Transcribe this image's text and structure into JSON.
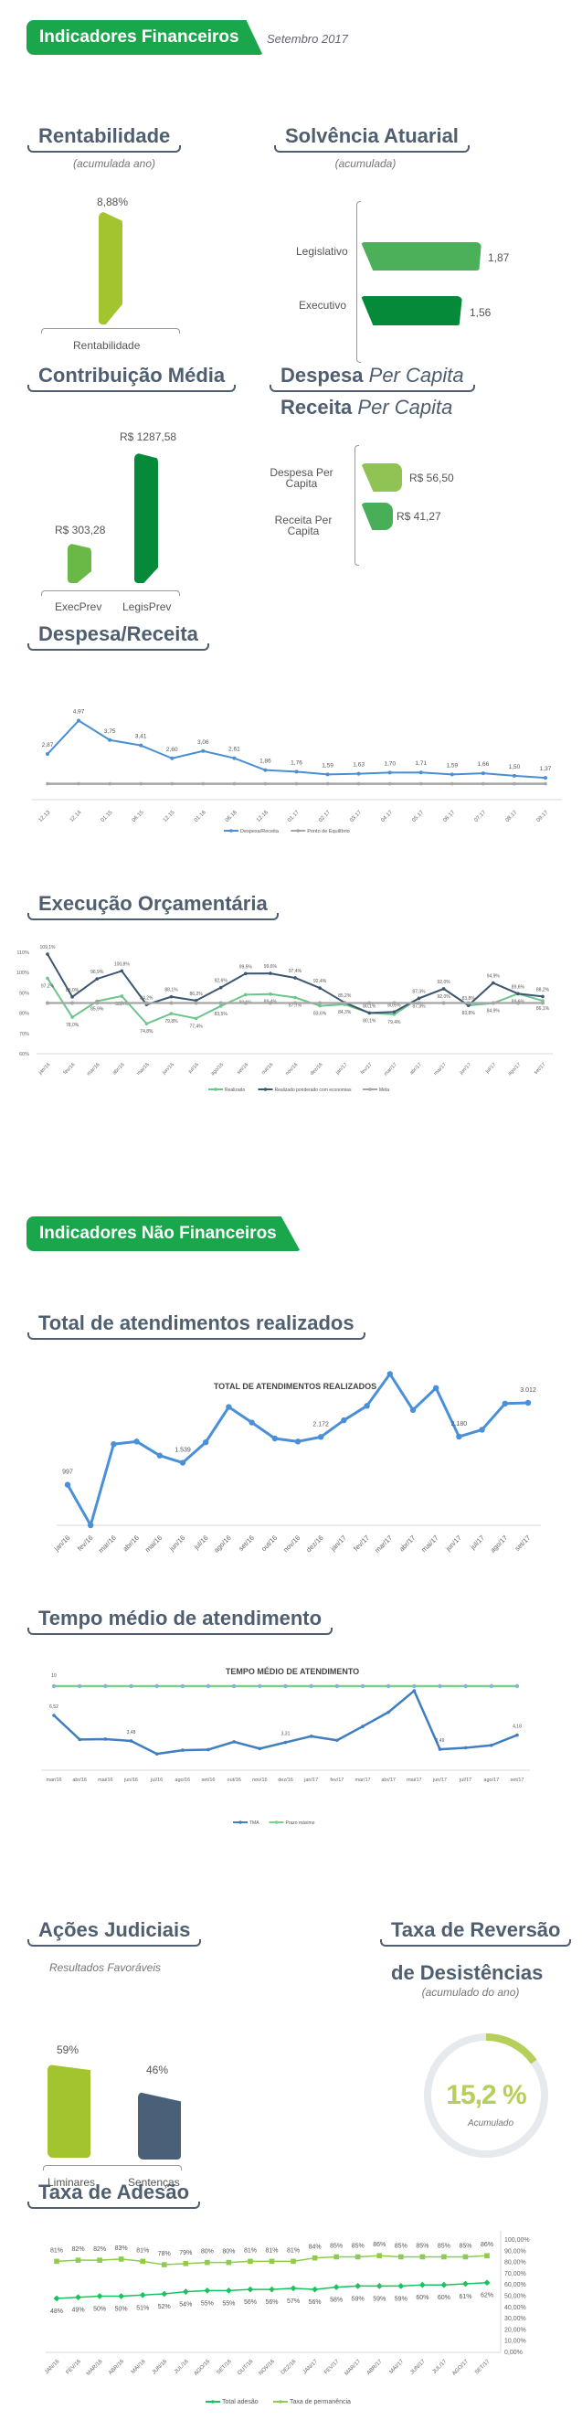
{
  "header": {
    "banner": "Indicadores Financeiros",
    "date": "Setembro 2017"
  },
  "colors": {
    "brand_green": "#1aa64a",
    "title_slate": "#4f5f6f",
    "lime": "#a2c42e",
    "legislativo": "#4caf5a",
    "executivo": "#058a3a",
    "navy": "#3d5672",
    "blue": "#4a8fd4"
  },
  "rentabilidade": {
    "title": "Rentabilidade",
    "subtitle": "(acumulada ano)",
    "value": 8.88,
    "value_label": "8,88%",
    "category": "Rentabilidade"
  },
  "solvencia": {
    "title": "Solvência Atuarial",
    "subtitle": "(acumulada)",
    "bars": [
      {
        "label": "Legislativo",
        "value": 1.87,
        "value_label": "1,87"
      },
      {
        "label": "Executivo",
        "value": 1.56,
        "value_label": "1,56"
      }
    ]
  },
  "contribuicao": {
    "title": "Contribuição Média",
    "bars": [
      {
        "label": "ExecPrev",
        "value": 303.28,
        "value_label": "R$ 303,28"
      },
      {
        "label": "LegisPrev",
        "value": 1287.58,
        "value_label": "R$ 1287,58"
      }
    ]
  },
  "per_capita": {
    "title1_bold": "Despesa",
    "title1_italic": "Per Capita",
    "title2_bold": "Receita",
    "title2_italic": "Per Capita",
    "bars": [
      {
        "label": "Despesa Per Capita",
        "value": 56.5,
        "value_label": "R$ 56,50"
      },
      {
        "label": "Receita Per Capita",
        "value": 41.27,
        "value_label": "R$ 41,27"
      }
    ]
  },
  "sections": {
    "despesa_receita": "Despesa/Receita",
    "execucao": "Execução Orçamentária",
    "nao_financeiros_banner": "Indicadores Não Financeiros",
    "atendimentos": "Total de atendimentos realizados",
    "tempo": "Tempo médio de atendimento",
    "acoes": "Ações Judiciais",
    "acoes_sub": "Resultados Favoráveis",
    "reversao_line1": "Taxa de Reversão",
    "reversao_line2": "de Desistências",
    "reversao_sub": "(acumulado do ano)",
    "adesao": "Taxa de Adesão"
  },
  "acoes": {
    "bars": [
      {
        "label": "Liminares",
        "value": 59,
        "value_label": "59%"
      },
      {
        "label": "Sentenças",
        "value": 46,
        "value_label": "46%"
      }
    ]
  },
  "reversao": {
    "value": 15.2,
    "value_label": "15,2 %",
    "caption": "Acumulado"
  },
  "chart_data": [
    {
      "id": "despesa_receita",
      "type": "line",
      "title": "",
      "categories": [
        "12.13",
        "12.14",
        "01.15",
        "06.15",
        "12.15",
        "01.16",
        "06.16",
        "12.16",
        "01.17",
        "02.17",
        "03.17",
        "04.17",
        "05.17",
        "06.17",
        "07.17",
        "08.17",
        "09.17"
      ],
      "ylim": [
        0,
        5.5
      ],
      "grid": false,
      "legend": "bottom",
      "series": [
        {
          "name": "Despesa/Receita",
          "color": "#4a8fd4",
          "values": [
            2.87,
            4.97,
            3.75,
            3.41,
            2.6,
            3.06,
            2.61,
            1.86,
            1.76,
            1.59,
            1.63,
            1.7,
            1.71,
            1.59,
            1.66,
            1.5,
            1.37
          ],
          "labels": [
            "2,87",
            "4,97",
            "3,75",
            "3,41",
            "2,60",
            "3,06",
            "2,61",
            "1,86",
            "1,76",
            "1,59",
            "1,63",
            "1,70",
            "1,71",
            "1,59",
            "1,66",
            "1,50",
            "1,37"
          ]
        },
        {
          "name": "Ponto de Equilíbrio",
          "color": "#a6a6a6",
          "values": [
            1,
            1,
            1,
            1,
            1,
            1,
            1,
            1,
            1,
            1,
            1,
            1,
            1,
            1,
            1,
            1,
            1
          ]
        }
      ]
    },
    {
      "id": "execucao",
      "type": "line",
      "title": "",
      "categories": [
        "jan/16",
        "fev/16",
        "mar/16",
        "abr/16",
        "mai/16",
        "jun/16",
        "jul/16",
        "ago/16",
        "set/16",
        "out/16",
        "nov/16",
        "dez/16",
        "jan/17",
        "fev/17",
        "mar/17",
        "abr/17",
        "mai/17",
        "jun/17",
        "jul/17",
        "ago/17",
        "set/17"
      ],
      "ylim": [
        60,
        110
      ],
      "yticks": [
        "60%",
        "70%",
        "80%",
        "90%",
        "100%",
        "110%"
      ],
      "grid": false,
      "legend": "bottom",
      "series": [
        {
          "name": "Realizado",
          "color": "#6cc58a",
          "values": [
            97.2,
            78.0,
            85.9,
            88.4,
            74.8,
            79.8,
            77.4,
            83.5,
            89.1,
            89.4,
            87.7,
            83.6,
            84.3,
            80.1,
            79.4,
            87.3,
            92.0,
            83.8,
            84.9,
            89.6,
            86.1
          ],
          "labels": [
            "97,2%",
            "78,0%",
            "85,9%",
            "88,4%",
            "74,8%",
            "79,8%",
            "77,4%",
            "83,5%",
            "89,1%",
            "89,4%",
            "87,7%",
            "83,6%",
            "84,3%",
            "80,1%",
            "79,4%",
            "87,3%",
            "92,0%",
            "83,8%",
            "84,9%",
            "89,6%",
            "86,1%"
          ]
        },
        {
          "name": "Realizado ponderado com economias",
          "color": "#3d5672",
          "values": [
            109.1,
            88.0,
            96.9,
            100.8,
            84.2,
            88.1,
            86.2,
            92.6,
            99.5,
            99.6,
            97.4,
            92.4,
            85.2,
            80.1,
            80.6,
            87.3,
            92.0,
            83.8,
            94.9,
            89.6,
            88.2
          ],
          "labels": [
            "109,1%",
            "88,0%",
            "96,9%",
            "100,8%",
            "84,2%",
            "88,1%",
            "86,2%",
            "92,6%",
            "99,5%",
            "99,6%",
            "97,4%",
            "92,4%",
            "85,2%",
            "80,1%",
            "80,6%",
            "87,3%",
            "92,0%",
            "83,8%",
            "94,9%",
            "89,6%",
            "88,2%"
          ]
        },
        {
          "name": "Meta",
          "color": "#a6a6a6",
          "values": [
            85,
            85,
            85,
            85,
            85,
            85,
            85,
            85,
            85,
            85,
            85,
            85,
            85,
            85,
            85,
            85,
            85,
            85,
            85,
            85,
            85
          ]
        }
      ]
    },
    {
      "id": "atendimentos",
      "type": "line",
      "title": "TOTAL DE ATENDIMENTOS REALIZADOS",
      "categories": [
        "jan/16",
        "fev/16",
        "mar/16",
        "abr/16",
        "mai/16",
        "jun/16",
        "jul/16",
        "ago/16",
        "set/16",
        "out/16",
        "nov/16",
        "dez/16",
        "jan/17",
        "fev/17",
        "mar/17",
        "abr/17",
        "mai/17",
        "jun/17",
        "jul/17",
        "ago/17",
        "set/17"
      ],
      "ylim": [
        0,
        3800
      ],
      "grid": false,
      "series": [
        {
          "color": "#4a90d9",
          "values": [
            997,
            0,
            1995,
            2060,
            1715,
            1539,
            2042,
            2909,
            2527,
            2135,
            2060,
            2172,
            2583,
            2937,
            3721,
            2835,
            3376,
            2180,
            2350,
            2993,
            3012
          ],
          "labels": [
            "997",
            null,
            null,
            null,
            null,
            "1.539",
            null,
            null,
            null,
            null,
            null,
            "2.172",
            null,
            null,
            null,
            null,
            null,
            "2.180",
            null,
            null,
            "3.012"
          ]
        }
      ]
    },
    {
      "id": "tempo",
      "type": "line",
      "title": "TEMPO MÉDIO DE ATENDIMENTO",
      "categories": [
        "mar/16",
        "abr/16",
        "mai/16",
        "jun/16",
        "jul/16",
        "ago/16",
        "set/16",
        "out/16",
        "nov/16",
        "dez/16",
        "jan/17",
        "fev/17",
        "mar/17",
        "abr/17",
        "mai/17",
        "jun/17",
        "jul/17",
        "ago/17",
        "set/17"
      ],
      "ylim": [
        0,
        10
      ],
      "grid": false,
      "legend": "bottom",
      "series": [
        {
          "name": "TMA",
          "color": "#3f7fbf",
          "values": [
            6.52,
            3.66,
            3.7,
            3.48,
            1.94,
            2.38,
            2.45,
            3.38,
            2.57,
            3.31,
            4.04,
            3.56,
            5.21,
            6.9,
            9.45,
            2.49,
            2.67,
            2.96,
            4.18
          ],
          "labels": [
            "6,52",
            null,
            null,
            "3,48",
            null,
            null,
            null,
            null,
            null,
            "3,31",
            null,
            null,
            null,
            null,
            null,
            "2,49",
            null,
            null,
            "4,18"
          ]
        },
        {
          "name": "Prazo máximo",
          "color": "#7ccf8c",
          "values": [
            10,
            10,
            10,
            10,
            10,
            10,
            10,
            10,
            10,
            10,
            10,
            10,
            10,
            10,
            10,
            10,
            10,
            10,
            10
          ],
          "labels": [
            "10",
            null,
            null,
            null,
            null,
            null,
            null,
            null,
            null,
            null,
            null,
            null,
            null,
            null,
            null,
            null,
            null,
            null,
            null
          ]
        }
      ]
    },
    {
      "id": "adesao",
      "type": "line",
      "title": "",
      "categories": [
        "JAN/16",
        "FEV/16",
        "MAR/16",
        "ABR/16",
        "MAI/16",
        "JUN/16",
        "JUL/16",
        "AGO/16",
        "SET/16",
        "OUT/16",
        "NOV/16",
        "DEZ/16",
        "JAN/17",
        "FEV/17",
        "MAR/17",
        "ABR/17",
        "MAI/17",
        "JUN/17",
        "JUL/17",
        "AGO/17",
        "SET/17"
      ],
      "ylim": [
        0,
        100
      ],
      "yticks": [
        "0,00%",
        "10,00%",
        "20,00%",
        "30,00%",
        "40,00%",
        "50,00%",
        "60,00%",
        "70,00%",
        "80,00%",
        "90,00%",
        "100,00%"
      ],
      "yaxis_side": "right",
      "grid": false,
      "legend": "bottom",
      "series": [
        {
          "name": "Total adesão",
          "color": "#19c460",
          "marker": "diamond",
          "values": [
            48,
            49,
            50,
            50,
            51,
            52,
            54,
            55,
            55,
            56,
            56,
            57,
            56,
            58,
            59,
            59,
            59,
            60,
            60,
            61,
            62
          ],
          "labels": [
            "48%",
            "49%",
            "50%",
            "50%",
            "51%",
            "52%",
            "54%",
            "55%",
            "55%",
            "56%",
            "56%",
            "57%",
            "56%",
            "58%",
            "59%",
            "59%",
            "59%",
            "60%",
            "60%",
            "61%",
            "62%"
          ]
        },
        {
          "name": "Taxa de permanência",
          "color": "#8fcc4a",
          "marker": "square",
          "values": [
            81,
            82,
            82,
            83,
            81,
            78,
            79,
            80,
            80,
            81,
            81,
            81,
            84,
            85,
            85,
            86,
            85,
            85,
            85,
            85,
            86
          ],
          "labels": [
            "81%",
            "82%",
            "82%",
            "83%",
            "81%",
            "78%",
            "79%",
            "80%",
            "80%",
            "81%",
            "81%",
            "81%",
            "84%",
            "85%",
            "85%",
            "86%",
            "85%",
            "85%",
            "85%",
            "85%",
            "86%"
          ]
        }
      ]
    }
  ]
}
